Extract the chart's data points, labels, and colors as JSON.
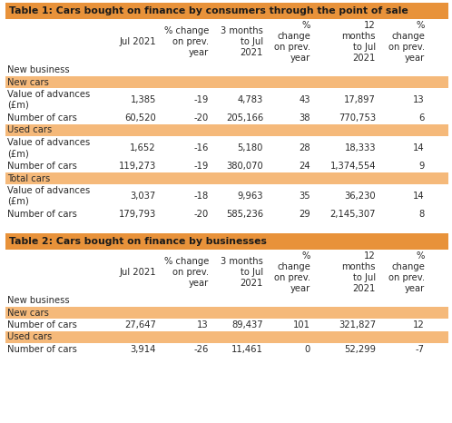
{
  "table1_title": "Table 1: Cars bought on finance by consumers through the point of sale",
  "table2_title": "Table 2: Cars bought on finance by businesses",
  "orange_title": "#E8923A",
  "orange_section": "#F5B97A",
  "white_bg": "#FFFFFF",
  "text_color": "#2A2A2A",
  "col_header_texts": [
    "",
    "Jul 2021",
    "% change\non prev.\nyear",
    "3 months\nto Jul\n2021",
    "%\nchange\non prev.\nyear",
    "12\nmonths\nto Jul\n2021",
    "%\nchange\non prev.\nyear"
  ],
  "table1_rows": [
    {
      "label": "Value of advances\n(£m)",
      "section": "New cars",
      "values": [
        "1,385",
        "-19",
        "4,783",
        "43",
        "17,897",
        "13"
      ]
    },
    {
      "label": "Number of cars",
      "section": "New cars",
      "values": [
        "60,520",
        "-20",
        "205,166",
        "38",
        "770,753",
        "6"
      ]
    },
    {
      "label": "Value of advances\n(£m)",
      "section": "Used cars",
      "values": [
        "1,652",
        "-16",
        "5,180",
        "28",
        "18,333",
        "14"
      ]
    },
    {
      "label": "Number of cars",
      "section": "Used cars",
      "values": [
        "119,273",
        "-19",
        "380,070",
        "24",
        "1,374,554",
        "9"
      ]
    },
    {
      "label": "Value of advances\n(£m)",
      "section": "Total cars",
      "values": [
        "3,037",
        "-18",
        "9,963",
        "35",
        "36,230",
        "14"
      ]
    },
    {
      "label": "Number of cars",
      "section": "Total cars",
      "values": [
        "179,793",
        "-20",
        "585,236",
        "29",
        "2,145,307",
        "8"
      ]
    }
  ],
  "table1_sections": [
    "New cars",
    "Used cars",
    "Total cars"
  ],
  "table2_rows": [
    {
      "label": "Number of cars",
      "section": "New cars",
      "values": [
        "27,647",
        "13",
        "89,437",
        "101",
        "321,827",
        "12"
      ]
    },
    {
      "label": "Number of cars",
      "section": "Used cars",
      "values": [
        "3,914",
        "-26",
        "11,461",
        "0",
        "52,299",
        "-7"
      ]
    }
  ],
  "table2_sections": [
    "New cars",
    "Used cars"
  ],
  "font_size": 7.2,
  "title_font_size": 7.8
}
